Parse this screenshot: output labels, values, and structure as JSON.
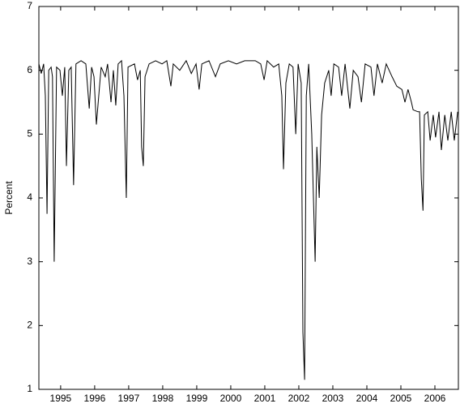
{
  "chart_data": {
    "type": "line",
    "y_label": "Percent",
    "color": "#000000",
    "xlim": [
      1994.86,
      2007.19
    ],
    "ylim": [
      1,
      7
    ],
    "yticks": [
      1,
      2,
      3,
      4,
      5,
      6,
      7
    ],
    "xticks": [
      {
        "value": 1995.5,
        "label": "1995"
      },
      {
        "value": 1996.5,
        "label": "1996"
      },
      {
        "value": 1997.5,
        "label": "1997"
      },
      {
        "value": 1998.5,
        "label": "1998"
      },
      {
        "value": 1999.5,
        "label": "1999"
      },
      {
        "value": 2000.5,
        "label": "2000"
      },
      {
        "value": 2001.5,
        "label": "2001"
      },
      {
        "value": 2002.5,
        "label": "2002"
      },
      {
        "value": 2003.5,
        "label": "2003"
      },
      {
        "value": 2004.5,
        "label": "2004"
      },
      {
        "value": 2005.5,
        "label": "2005"
      },
      {
        "value": 2006.5,
        "label": "2006"
      }
    ],
    "x": [
      1994.86,
      1994.93,
      1995.0,
      1995.05,
      1995.1,
      1995.15,
      1995.22,
      1995.26,
      1995.31,
      1995.38,
      1995.48,
      1995.55,
      1995.62,
      1995.67,
      1995.74,
      1995.81,
      1995.88,
      1995.95,
      1996.1,
      1996.24,
      1996.34,
      1996.41,
      1996.48,
      1996.55,
      1996.62,
      1996.69,
      1996.81,
      1996.88,
      1996.98,
      1997.05,
      1997.12,
      1997.19,
      1997.29,
      1997.36,
      1997.43,
      1997.48,
      1997.67,
      1997.76,
      1997.84,
      1997.88,
      1997.93,
      1997.98,
      1998.1,
      1998.29,
      1998.48,
      1998.62,
      1998.74,
      1998.81,
      1999.0,
      1999.19,
      1999.34,
      1999.48,
      1999.57,
      1999.65,
      1999.86,
      2000.05,
      2000.19,
      2000.43,
      2000.67,
      2000.91,
      2001.22,
      2001.38,
      2001.48,
      2001.57,
      2001.76,
      2001.91,
      2002.0,
      2002.05,
      2002.12,
      2002.22,
      2002.33,
      2002.41,
      2002.48,
      2002.57,
      2002.62,
      2002.67,
      2002.72,
      2002.79,
      2002.88,
      2002.98,
      2003.03,
      2003.1,
      2003.17,
      2003.26,
      2003.38,
      2003.45,
      2003.53,
      2003.67,
      2003.76,
      2003.86,
      2004.0,
      2004.1,
      2004.24,
      2004.34,
      2004.45,
      2004.62,
      2004.71,
      2004.81,
      2004.95,
      2005.07,
      2005.24,
      2005.38,
      2005.53,
      2005.62,
      2005.71,
      2005.81,
      2005.86,
      2006.0,
      2006.05,
      2006.1,
      2006.15,
      2006.19,
      2006.29,
      2006.36,
      2006.45,
      2006.52,
      2006.62,
      2006.69,
      2006.79,
      2006.88,
      2006.98,
      2007.07,
      2007.17
    ],
    "values": [
      6.1,
      5.95,
      6.1,
      5.6,
      3.75,
      6.0,
      6.05,
      5.9,
      3.0,
      6.05,
      6.0,
      5.6,
      6.05,
      4.5,
      6.0,
      6.05,
      4.2,
      6.1,
      6.15,
      6.1,
      5.4,
      6.05,
      5.9,
      5.15,
      5.6,
      6.05,
      5.9,
      6.1,
      5.5,
      6.0,
      5.45,
      6.1,
      6.15,
      5.6,
      4.0,
      6.05,
      6.1,
      5.85,
      6.0,
      4.8,
      4.5,
      5.9,
      6.1,
      6.15,
      6.1,
      6.15,
      5.75,
      6.1,
      6.0,
      6.15,
      5.95,
      6.1,
      5.7,
      6.1,
      6.15,
      5.9,
      6.1,
      6.15,
      6.1,
      6.15,
      6.15,
      6.1,
      5.85,
      6.15,
      6.05,
      6.1,
      5.6,
      4.45,
      5.8,
      6.1,
      6.05,
      5.0,
      6.1,
      5.8,
      1.9,
      1.15,
      5.6,
      6.1,
      5.0,
      3.0,
      4.8,
      4.0,
      5.3,
      5.8,
      6.0,
      5.6,
      6.1,
      6.05,
      5.6,
      6.1,
      5.4,
      6.0,
      5.9,
      5.5,
      6.1,
      6.05,
      5.6,
      6.1,
      5.8,
      6.1,
      5.9,
      5.75,
      5.7,
      5.5,
      5.7,
      5.5,
      5.38,
      5.35,
      5.35,
      4.3,
      3.8,
      5.3,
      5.35,
      4.9,
      5.3,
      4.95,
      5.35,
      4.75,
      5.3,
      4.9,
      5.35,
      4.9,
      5.35
    ]
  }
}
